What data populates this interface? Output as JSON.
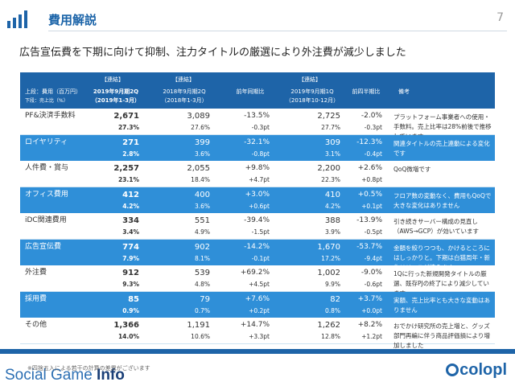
{
  "page": {
    "title": "費用解説",
    "page_number": "7",
    "subtitle": "広告宣伝費を下期に向けて抑制、注力タイトルの厳選により外注費が減少しました"
  },
  "table": {
    "header": {
      "group_a": "【連結】",
      "group_b": "【連結】",
      "group_c": "【連結】",
      "units_1": "上段：費用（百万円）",
      "units_2": "下段：売上比（%）",
      "col1_line1": "2019年9月期2Q",
      "col1_line2": "（2019年1-3月）",
      "col2_line1": "2018年9月期2Q",
      "col2_line2": "（2018年1-3月）",
      "col3": "前年同期比",
      "col4_line1": "2019年9月期1Q",
      "col4_line2": "（2018年10-12月）",
      "col5": "前四半期比",
      "col6": "備考"
    },
    "rows": [
      {
        "category": "PF&決済手数料",
        "v1": "2,671",
        "p1": "27.3%",
        "v2": "3,089",
        "p2": "27.6%",
        "c1": "-13.5%",
        "d1": "-0.3pt",
        "v3": "2,725",
        "p3": "27.7%",
        "c2": "-2.0%",
        "d2": "-0.3pt",
        "note": "プラットフォーム事業者への使用・手数料。売上比率は28%前後で推移しています"
      },
      {
        "category": "ロイヤリティ",
        "v1": "271",
        "p1": "2.8%",
        "v2": "399",
        "p2": "3.6%",
        "c1": "-32.1%",
        "d1": "-0.8pt",
        "v3": "309",
        "p3": "3.1%",
        "c2": "-12.3%",
        "d2": "-0.4pt",
        "note": "関連タイトルの売上連動による変化です"
      },
      {
        "category": "人件費・賞与",
        "v1": "2,257",
        "p1": "23.1%",
        "v2": "2,055",
        "p2": "18.4%",
        "c1": "+9.8%",
        "d1": "+4.7pt",
        "v3": "2,200",
        "p3": "22.3%",
        "c2": "+2.6%",
        "d2": "+0.8pt",
        "note": "QoQ微増です"
      },
      {
        "category": "オフィス費用",
        "v1": "412",
        "p1": "4.2%",
        "v2": "400",
        "p2": "3.6%",
        "c1": "+3.0%",
        "d1": "+0.6pt",
        "v3": "410",
        "p3": "4.2%",
        "c2": "+0.5%",
        "d2": "+0.1pt",
        "note": "フロア数の変動なく、費用もQoQで大きな変化はありません"
      },
      {
        "category": "iDC関連費用",
        "v1": "334",
        "p1": "3.4%",
        "v2": "551",
        "p2": "4.9%",
        "c1": "-39.4%",
        "d1": "-1.5pt",
        "v3": "388",
        "p3": "3.9%",
        "c2": "-13.9%",
        "d2": "-0.5pt",
        "note": "引き続きサーバー構成の見直し（AWS→GCP）が効いています"
      },
      {
        "category": "広告宣伝費",
        "v1": "774",
        "p1": "7.9%",
        "v2": "902",
        "p2": "8.1%",
        "c1": "-14.2%",
        "d1": "-0.1pt",
        "v3": "1,670",
        "p3": "17.2%",
        "c2": "-53.7%",
        "d2": "-9.4pt",
        "note": "金額を絞りつつも、かけるところにはしっかりと。下期は白猫周年・新作リリースが控えます"
      },
      {
        "category": "外注費",
        "v1": "912",
        "p1": "9.3%",
        "v2": "539",
        "p2": "4.8%",
        "c1": "+69.2%",
        "d1": "+4.5pt",
        "v3": "1,002",
        "p3": "9.9%",
        "c2": "-9.0%",
        "d2": "-0.6pt",
        "note": "1Qに行った新規開発タイトルの厳選、既存PJの終了により減少しています"
      },
      {
        "category": "採用費",
        "v1": "85",
        "p1": "0.9%",
        "v2": "79",
        "p2": "0.7%",
        "c1": "+7.6%",
        "d1": "+0.2pt",
        "v3": "82",
        "p3": "0.8%",
        "c2": "+3.7%",
        "d2": "+0.0pt",
        "note": "実額、売上比率とも大きな変動はありません"
      },
      {
        "category": "その他",
        "v1": "1,366",
        "p1": "14.0%",
        "v2": "1,191",
        "p2": "10.6%",
        "c1": "+14.7%",
        "d1": "+3.3pt",
        "v3": "1,262",
        "p3": "12.8%",
        "c2": "+8.2%",
        "d2": "+1.2pt",
        "note": "おでかけ研究所の売上増と、グッズ部門再編に伴う商品評価損により増加しました"
      }
    ]
  },
  "footer": {
    "footnote": "※四捨五入による若干の計算の差異がございます",
    "brand_left_a": "Social Game ",
    "brand_left_b": "Info",
    "brand_right": "colopl"
  },
  "colors": {
    "header_blue": "#1e64a8",
    "row_blue": "#2f8fd8",
    "title_blue": "#1a63a8"
  },
  "icons": {
    "logo": "bar-chart-logo-icon",
    "brand": "colopl-logo-icon"
  }
}
